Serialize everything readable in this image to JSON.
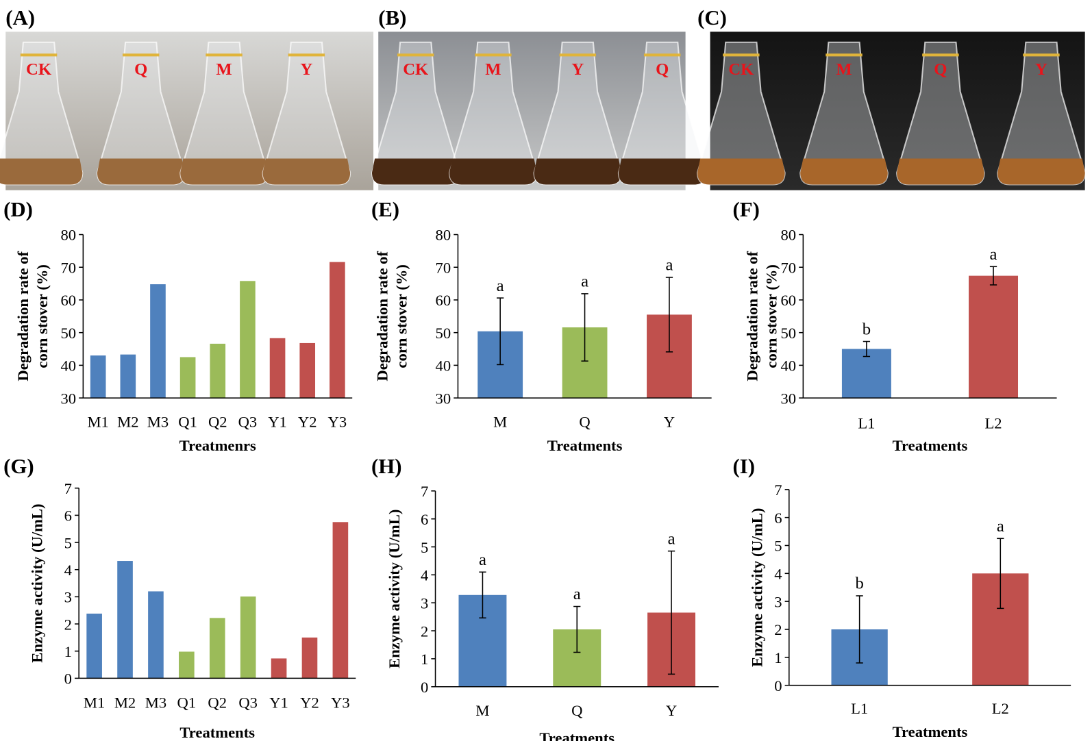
{
  "photos": [
    {
      "panel": "(A)",
      "labels": [
        "CK",
        "Q",
        "M",
        "Y"
      ]
    },
    {
      "panel": "(B)",
      "labels": [
        "CK",
        "M",
        "Y",
        "Q"
      ]
    },
    {
      "panel": "(C)",
      "labels": [
        "CK",
        "M",
        "Q",
        "Y"
      ]
    }
  ],
  "chart_data": [
    {
      "type": "bar",
      "panel": "(D)",
      "ylabel": [
        "Degradation rate of",
        "corn stover (%)"
      ],
      "xlabel": "Treatmenrs",
      "categories": [
        "M1",
        "M2",
        "M3",
        "Q1",
        "Q2",
        "Q3",
        "Y1",
        "Y2",
        "Y3"
      ],
      "values": [
        43,
        43.3,
        64.8,
        42.5,
        46.6,
        65.8,
        48.3,
        46.8,
        71.6
      ],
      "colors": [
        "#4f81bd",
        "#4f81bd",
        "#4f81bd",
        "#9bbb59",
        "#9bbb59",
        "#9bbb59",
        "#c0504d",
        "#c0504d",
        "#c0504d"
      ],
      "ylim": [
        30,
        80
      ],
      "yticks": [
        30,
        40,
        50,
        60,
        70,
        80
      ]
    },
    {
      "type": "bar",
      "panel": "(E)",
      "ylabel": [
        "Degradation rate of",
        "corn stover (%)"
      ],
      "xlabel": "Treatments",
      "categories": [
        "M",
        "Q",
        "Y"
      ],
      "values": [
        50.4,
        51.6,
        55.5
      ],
      "errors": [
        10.2,
        10.3,
        11.4
      ],
      "annotations": [
        "a",
        "a",
        "a"
      ],
      "colors": [
        "#4f81bd",
        "#9bbb59",
        "#c0504d"
      ],
      "ylim": [
        30,
        80
      ],
      "yticks": [
        30,
        40,
        50,
        60,
        70,
        80
      ]
    },
    {
      "type": "bar",
      "panel": "(F)",
      "ylabel": [
        "Degradation rate of",
        "corn stover (%)"
      ],
      "xlabel": "Treatments",
      "categories": [
        "L1",
        "L2"
      ],
      "values": [
        45,
        67.4
      ],
      "errors": [
        2.3,
        2.8
      ],
      "annotations": [
        "b",
        "a"
      ],
      "colors": [
        "#4f81bd",
        "#c0504d"
      ],
      "ylim": [
        30,
        80
      ],
      "yticks": [
        30,
        40,
        50,
        60,
        70,
        80
      ]
    },
    {
      "type": "bar",
      "panel": "(G)",
      "ylabel": [
        "Enzyme activity (U/mL)"
      ],
      "xlabel": "Treatments",
      "categories": [
        "M1",
        "M2",
        "M3",
        "Q1",
        "Q2",
        "Q3",
        "Y1",
        "Y2",
        "Y3"
      ],
      "values": [
        2.38,
        4.32,
        3.2,
        0.98,
        2.22,
        3.01,
        0.73,
        1.5,
        5.75
      ],
      "colors": [
        "#4f81bd",
        "#4f81bd",
        "#4f81bd",
        "#9bbb59",
        "#9bbb59",
        "#9bbb59",
        "#c0504d",
        "#c0504d",
        "#c0504d"
      ],
      "ylim": [
        0,
        7
      ],
      "yticks": [
        0,
        1,
        2,
        3,
        4,
        5,
        6,
        7
      ]
    },
    {
      "type": "bar",
      "panel": "(H)",
      "ylabel": [
        "Enzyme activity (U/mL)"
      ],
      "xlabel": "Treatments",
      "categories": [
        "M",
        "Q",
        "Y"
      ],
      "values": [
        3.28,
        2.05,
        2.65
      ],
      "errors": [
        0.82,
        0.82,
        2.2
      ],
      "annotations": [
        "a",
        "a",
        "a"
      ],
      "colors": [
        "#4f81bd",
        "#9bbb59",
        "#c0504d"
      ],
      "ylim": [
        0,
        7
      ],
      "yticks": [
        0,
        1,
        2,
        3,
        4,
        5,
        6,
        7
      ]
    },
    {
      "type": "bar",
      "panel": "(I)",
      "ylabel": [
        "Enzyme activity (U/mL)"
      ],
      "xlabel": "Treatments",
      "categories": [
        "L1",
        "L2"
      ],
      "values": [
        2.0,
        4.0
      ],
      "errors": [
        1.2,
        1.25
      ],
      "annotations": [
        "b",
        "a"
      ],
      "colors": [
        "#4f81bd",
        "#c0504d"
      ],
      "ylim": [
        0,
        7
      ],
      "yticks": [
        0,
        1,
        2,
        3,
        4,
        5,
        6,
        7
      ]
    }
  ]
}
